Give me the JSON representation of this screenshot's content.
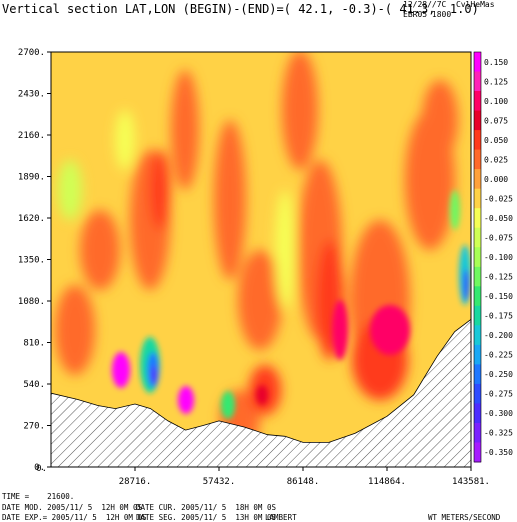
{
  "header": {
    "title": "Vertical section LAT,LON (BEGIN)-(END)=( 42.1, -0.3)-( 41.3,  1.0)",
    "date_line1": "12/28//7C  CvlHeMas",
    "date_line2": "EBR05 1800"
  },
  "footer": {
    "time_label": "TIME =    21600.",
    "mod": "DATE MOD. 2005/11/ 5  12H 0M 0S",
    "cur": "DATE CUR. 2005/11/ 5  18H 0M 0S",
    "exp": "DATE EXP.= 2005/11/ 5  12H 0M 0S",
    "seg": "DATE SEG. 2005/11/ 5  13H 0M 0S",
    "projection": "LAMBERT",
    "units": "WT METERS/SECOND"
  },
  "chart_data": {
    "type": "heatmap",
    "title": "Vertical section LAT,LON (BEGIN)-(END)=( 42.1, -0.3)-( 41.3,  1.0)",
    "variable": "WT",
    "units": "METERS/SECOND",
    "xlim": [
      0,
      143581
    ],
    "ylim": [
      0,
      2700
    ],
    "x_ticks": [
      "28716.",
      "57432.",
      "86148.",
      "114864.",
      "143581."
    ],
    "y_ticks": [
      "0.",
      "270.",
      "540.",
      "810.",
      "1080.",
      "1350.",
      "1620.",
      "1890.",
      "2160.",
      "2430.",
      "2700."
    ],
    "colorbar": {
      "labels": [
        "0.150",
        "0.125",
        "0.100",
        "0.075",
        "0.050",
        "0.025",
        "0.000",
        "-0.025",
        "-0.050",
        "-0.075",
        "-0.100",
        "-0.125",
        "-0.150",
        "-0.175",
        "-0.200",
        "-0.225",
        "-0.250",
        "-0.275",
        "-0.300",
        "-0.325",
        "-0.350"
      ],
      "colors": [
        "#ff00ff",
        "#ff22b8",
        "#ff0066",
        "#e8002a",
        "#ff3b1c",
        "#ff6a2a",
        "#ffa13a",
        "#ffd246",
        "#f6ff55",
        "#d0ff55",
        "#a8ff55",
        "#70f860",
        "#35e870",
        "#19d8a0",
        "#19c8d8",
        "#1aa8f5",
        "#1f78ff",
        "#2e4dff",
        "#4d2dff",
        "#7a22ff",
        "#a61cff"
      ]
    },
    "terrain": [
      [
        0,
        480
      ],
      [
        9000,
        440
      ],
      [
        16000,
        400
      ],
      [
        22000,
        380
      ],
      [
        28716,
        410
      ],
      [
        34000,
        380
      ],
      [
        40000,
        300
      ],
      [
        46000,
        240
      ],
      [
        52000,
        270
      ],
      [
        57432,
        300
      ],
      [
        66000,
        260
      ],
      [
        74000,
        210
      ],
      [
        80000,
        200
      ],
      [
        86148,
        160
      ],
      [
        95000,
        160
      ],
      [
        104000,
        220
      ],
      [
        114864,
        330
      ],
      [
        124000,
        470
      ],
      [
        132000,
        720
      ],
      [
        138000,
        880
      ],
      [
        143581,
        960
      ]
    ]
  }
}
